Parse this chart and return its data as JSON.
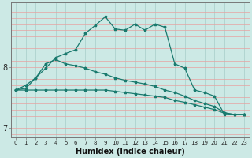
{
  "xlabel": "Humidex (Indice chaleur)",
  "bg_color": "#cce9e5",
  "grid_color_h": "#e8a0a0",
  "grid_color_v": "#a8cdc9",
  "line_color": "#1a7a6e",
  "x": [
    0,
    1,
    2,
    3,
    4,
    5,
    6,
    7,
    8,
    9,
    10,
    11,
    12,
    13,
    14,
    15,
    16,
    17,
    18,
    19,
    20,
    21,
    22,
    23
  ],
  "line1": [
    7.62,
    7.7,
    7.82,
    7.98,
    8.15,
    8.22,
    8.28,
    8.55,
    8.68,
    8.82,
    8.62,
    8.6,
    8.7,
    8.6,
    8.7,
    8.65,
    8.05,
    7.98,
    7.62,
    7.58,
    7.52,
    7.22,
    7.22,
    7.22
  ],
  "line2": [
    7.62,
    7.65,
    7.82,
    8.05,
    8.12,
    8.05,
    8.02,
    7.98,
    7.92,
    7.88,
    7.82,
    7.78,
    7.75,
    7.72,
    7.68,
    7.62,
    7.58,
    7.52,
    7.45,
    7.4,
    7.35,
    7.25,
    7.22,
    7.22
  ],
  "line3": [
    7.62,
    7.62,
    7.62,
    7.62,
    7.62,
    7.62,
    7.62,
    7.62,
    7.62,
    7.62,
    7.6,
    7.58,
    7.56,
    7.54,
    7.52,
    7.5,
    7.45,
    7.42,
    7.38,
    7.34,
    7.3,
    7.24,
    7.22,
    7.22
  ],
  "ylim": [
    6.85,
    9.05
  ],
  "yticks": [
    7.0,
    8.0
  ],
  "ytick_labels": [
    "7",
    "8"
  ],
  "xtick_fontsize": 5.0,
  "ytick_fontsize": 7,
  "xlabel_fontsize": 7,
  "lw": 0.9,
  "ms": 2.5
}
